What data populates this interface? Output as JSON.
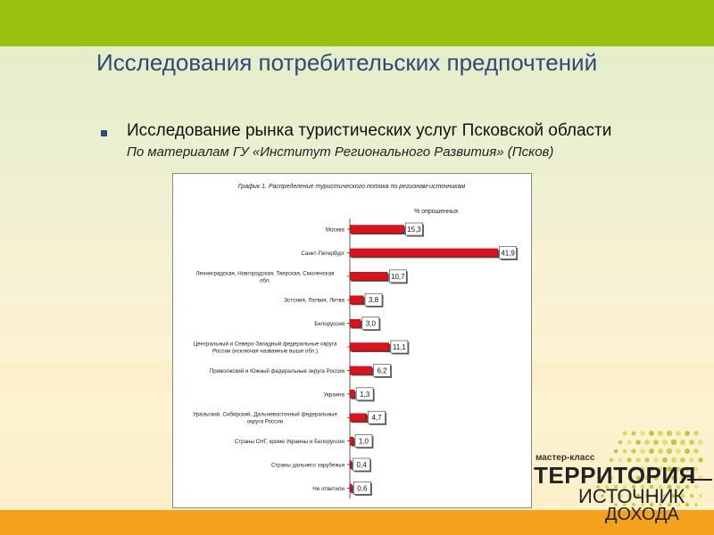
{
  "slide": {
    "title": "Исследования потребительских предпочтений",
    "subtitle": "Исследование рынка туристических услуг Псковской области",
    "source": "По материалам ГУ «Институт Регионального Развития» (Псков)",
    "colors": {
      "top_bar": "#99c10e",
      "bottom_bar": "#f4a21c",
      "title": "#2e4a78",
      "bar": "#e0101c"
    }
  },
  "logo": {
    "small": "мастер-класс",
    "line1": "ТЕРРИТОРИЯ",
    "line2": "ИСТОЧНИК",
    "line3": "ДОХОДА"
  },
  "chart_data": {
    "type": "bar",
    "orientation": "horizontal",
    "title": "График 1. Распределение туристического потока по регионам-источникам",
    "unit_label": "% опрошенных",
    "categories": [
      "Москва",
      "Санкт-Петербург",
      "Ленинградская, Новгородская, Тверская, Смоленская обл.",
      "Эстония, Латвия, Литва",
      "Белоруссия",
      "Центральный и Северо-Западный федеральные округа России (исключая названные выше обл.)",
      "Приволжский и Южный федеральные округа России",
      "Украина",
      "Уральский, Сибирский, Дальневосточный федеральные округа России",
      "Страны СНГ, кроме Украины и Белоруссии",
      "Страны дальнего зарубежья",
      "Не ответили"
    ],
    "category_lines": [
      [
        "Москва"
      ],
      [
        "Санкт-Петербург"
      ],
      [
        "Ленинградская, Новгородская, Тверская, Смоленская",
        "обл."
      ],
      [
        "Эстония, Латвия, Литва"
      ],
      [
        "Белоруссия"
      ],
      [
        "Центральный и Северо-Западный федеральные округа",
        "России (исключая названные выше обл.)"
      ],
      [
        "Приволжский и Южный федеральные округа России"
      ],
      [
        "Украина"
      ],
      [
        "Уральский, Сибирский, Дальневосточный федеральные",
        "округа России"
      ],
      [
        "Страны СНГ, кроме Украины и Белоруссии"
      ],
      [
        "Страны дальнего зарубежья"
      ],
      [
        "Не ответили"
      ]
    ],
    "values": [
      15.3,
      41.9,
      10.7,
      3.8,
      3.0,
      11.1,
      6.2,
      1.3,
      4.7,
      1.0,
      0.4,
      0.6
    ],
    "value_labels": [
      "15,3",
      "41,9",
      "10,7",
      "3,8",
      "3,0",
      "11,1",
      "6,2",
      "1,3",
      "4,7",
      "1,0",
      "0,4",
      "0,6"
    ],
    "xlim": [
      0,
      42
    ],
    "grid": false
  }
}
